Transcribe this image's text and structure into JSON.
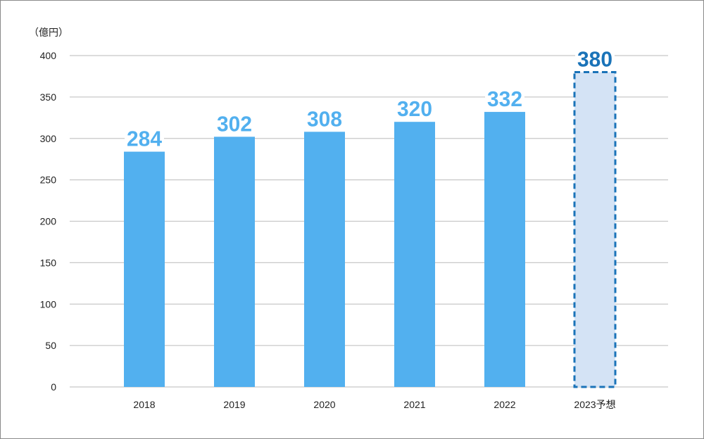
{
  "chart_data": {
    "type": "bar",
    "unit_label": "（億円）",
    "categories": [
      "2018",
      "2019",
      "2020",
      "2021",
      "2022",
      "2023予想"
    ],
    "values": [
      284,
      302,
      308,
      320,
      332,
      380
    ],
    "forecast": [
      false,
      false,
      false,
      false,
      false,
      true
    ],
    "ylim": [
      0,
      400
    ],
    "yticks": [
      0,
      50,
      100,
      150,
      200,
      250,
      300,
      350,
      400
    ],
    "grid": true,
    "colors": {
      "bar": "#52b0ef",
      "forecast_fill": "#d4e3f5",
      "forecast_border": "#1a73b8",
      "label": "#52b0ef",
      "forecast_label": "#1a73b8",
      "grid": "#c8c8c8"
    }
  }
}
